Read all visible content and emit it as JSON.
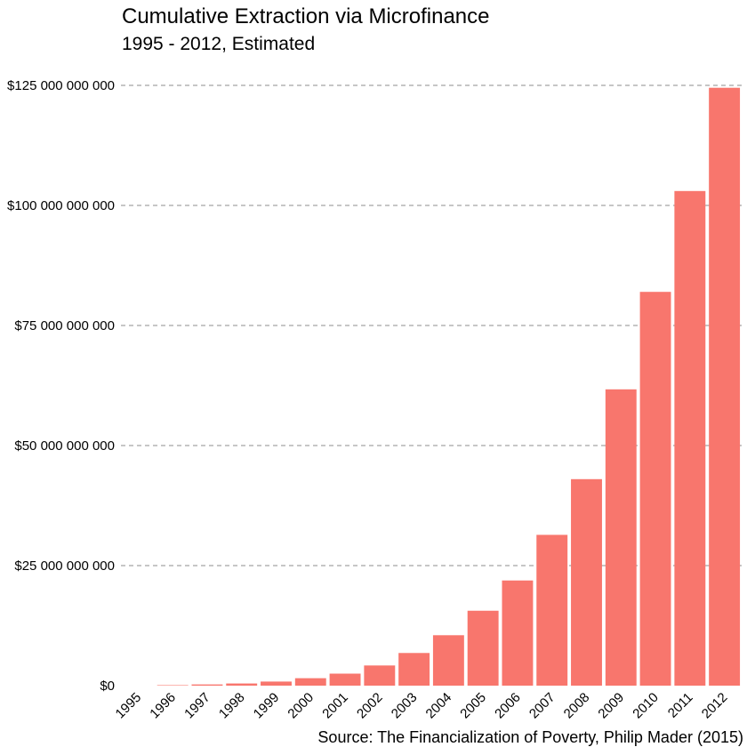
{
  "chart_data": {
    "type": "bar",
    "title": "Cumulative Extraction via Microfinance",
    "subtitle": "1995 - 2012, Estimated",
    "caption": "Source: The Financialization of Poverty, Philip Mader (2015)",
    "xlabel": "",
    "ylabel": "",
    "categories": [
      "1995",
      "1996",
      "1997",
      "1998",
      "1999",
      "2000",
      "2001",
      "2002",
      "2003",
      "2004",
      "2005",
      "2006",
      "2007",
      "2008",
      "2009",
      "2010",
      "2011",
      "2012"
    ],
    "values": [
      0,
      100000000,
      250000000,
      450000000,
      850000000,
      1550000000,
      2500000000,
      4200000000,
      6800000000,
      10500000000,
      15600000000,
      21900000000,
      31400000000,
      43000000000,
      61700000000,
      82000000000,
      103000000000,
      124500000000
    ],
    "ylim": [
      0,
      125000000000
    ],
    "yticks": [
      0,
      25000000000,
      50000000000,
      75000000000,
      100000000000,
      125000000000
    ],
    "ytick_labels": [
      "$0",
      "$25 000 000 000",
      "$50 000 000 000",
      "$75 000 000 000",
      "$100 000 000 000",
      "$125 000 000 000"
    ],
    "bar_color": "#F8766D",
    "grid": "horizontal dashed",
    "legend": "none"
  }
}
